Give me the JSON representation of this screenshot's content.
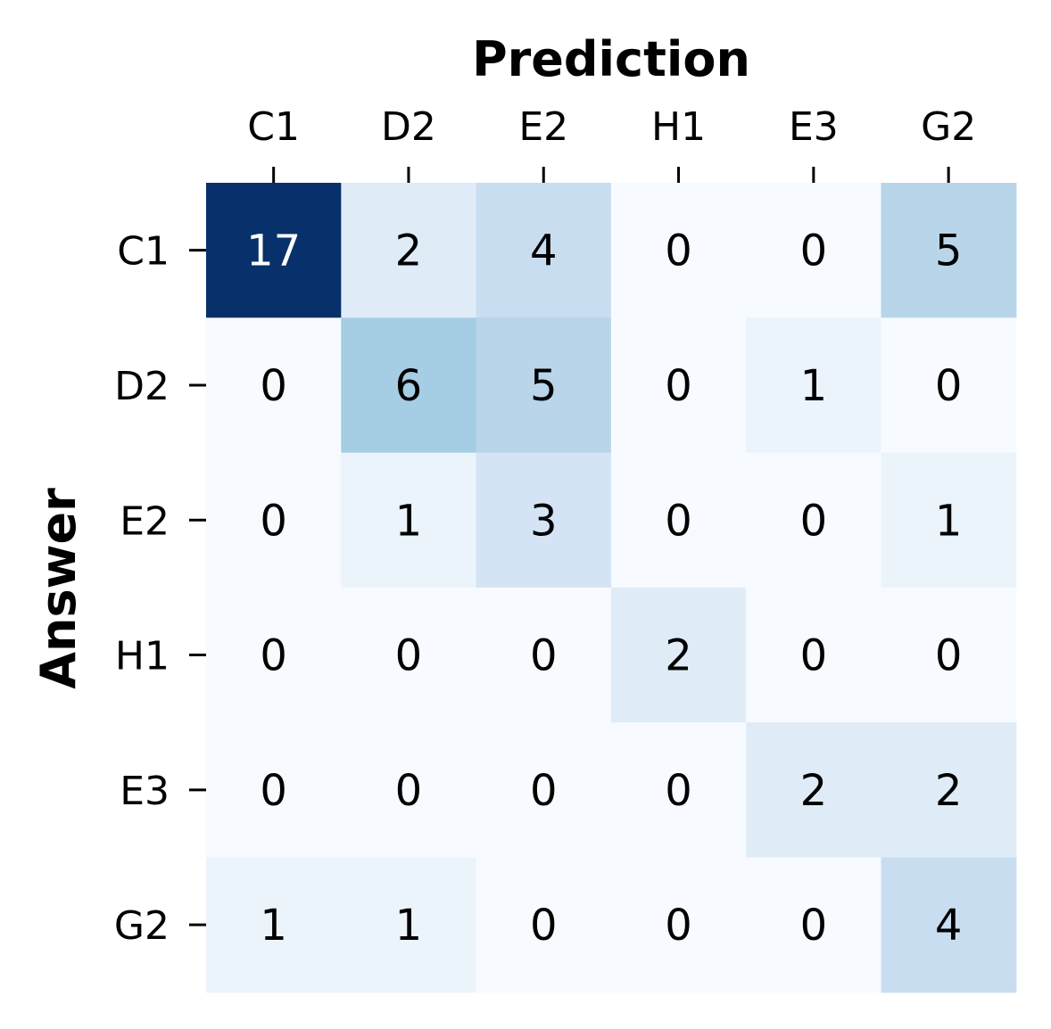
{
  "chart_data": {
    "type": "heatmap",
    "title": "",
    "xlabel": "Prediction",
    "ylabel": "Answer",
    "x_categories": [
      "C1",
      "D2",
      "E2",
      "H1",
      "E3",
      "G2"
    ],
    "y_categories": [
      "C1",
      "D2",
      "E2",
      "H1",
      "E3",
      "G2"
    ],
    "values": [
      [
        17,
        2,
        4,
        0,
        0,
        5
      ],
      [
        0,
        6,
        5,
        0,
        1,
        0
      ],
      [
        0,
        1,
        3,
        0,
        0,
        1
      ],
      [
        0,
        0,
        0,
        2,
        0,
        0
      ],
      [
        0,
        0,
        0,
        0,
        2,
        2
      ],
      [
        1,
        1,
        0,
        0,
        0,
        4
      ]
    ],
    "colormap": "Blues",
    "color_range": [
      0,
      17
    ],
    "x_axis_position": "top",
    "colorbar": false,
    "annotations": true
  }
}
